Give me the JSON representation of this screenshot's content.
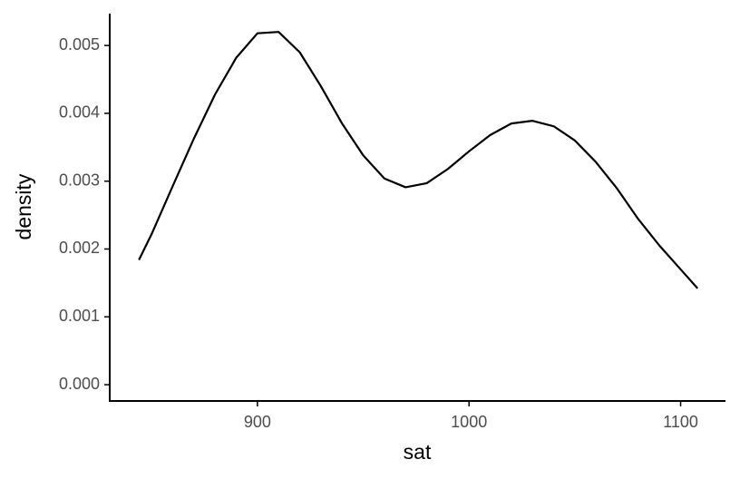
{
  "chart_data": {
    "type": "line",
    "x_label": "sat",
    "y_label": "density",
    "x": [
      844,
      850,
      860,
      870,
      880,
      890,
      900,
      910,
      920,
      930,
      940,
      950,
      960,
      970,
      980,
      990,
      1000,
      1010,
      1020,
      1030,
      1040,
      1050,
      1060,
      1070,
      1080,
      1090,
      1100,
      1108
    ],
    "series": [
      {
        "color": "#000000",
        "values": [
          0.00184,
          0.00222,
          0.00293,
          0.00363,
          0.00428,
          0.00482,
          0.00518,
          0.0052,
          0.0049,
          0.0044,
          0.00385,
          0.00338,
          0.00304,
          0.00291,
          0.00297,
          0.00318,
          0.00344,
          0.00368,
          0.00385,
          0.00389,
          0.00381,
          0.0036,
          0.00328,
          0.00289,
          0.00244,
          0.00205,
          0.0017,
          0.00142
        ]
      }
    ],
    "xlim": [
      830.2,
      1121.2
    ],
    "xticks": [
      900,
      1000,
      1100
    ],
    "ylim": [
      -0.00024,
      0.00547
    ],
    "yticks": [
      {
        "value": 0,
        "label": "0.000"
      },
      0.001,
      0.002,
      0.003,
      0.004,
      0.005
    ],
    "grid": false
  }
}
